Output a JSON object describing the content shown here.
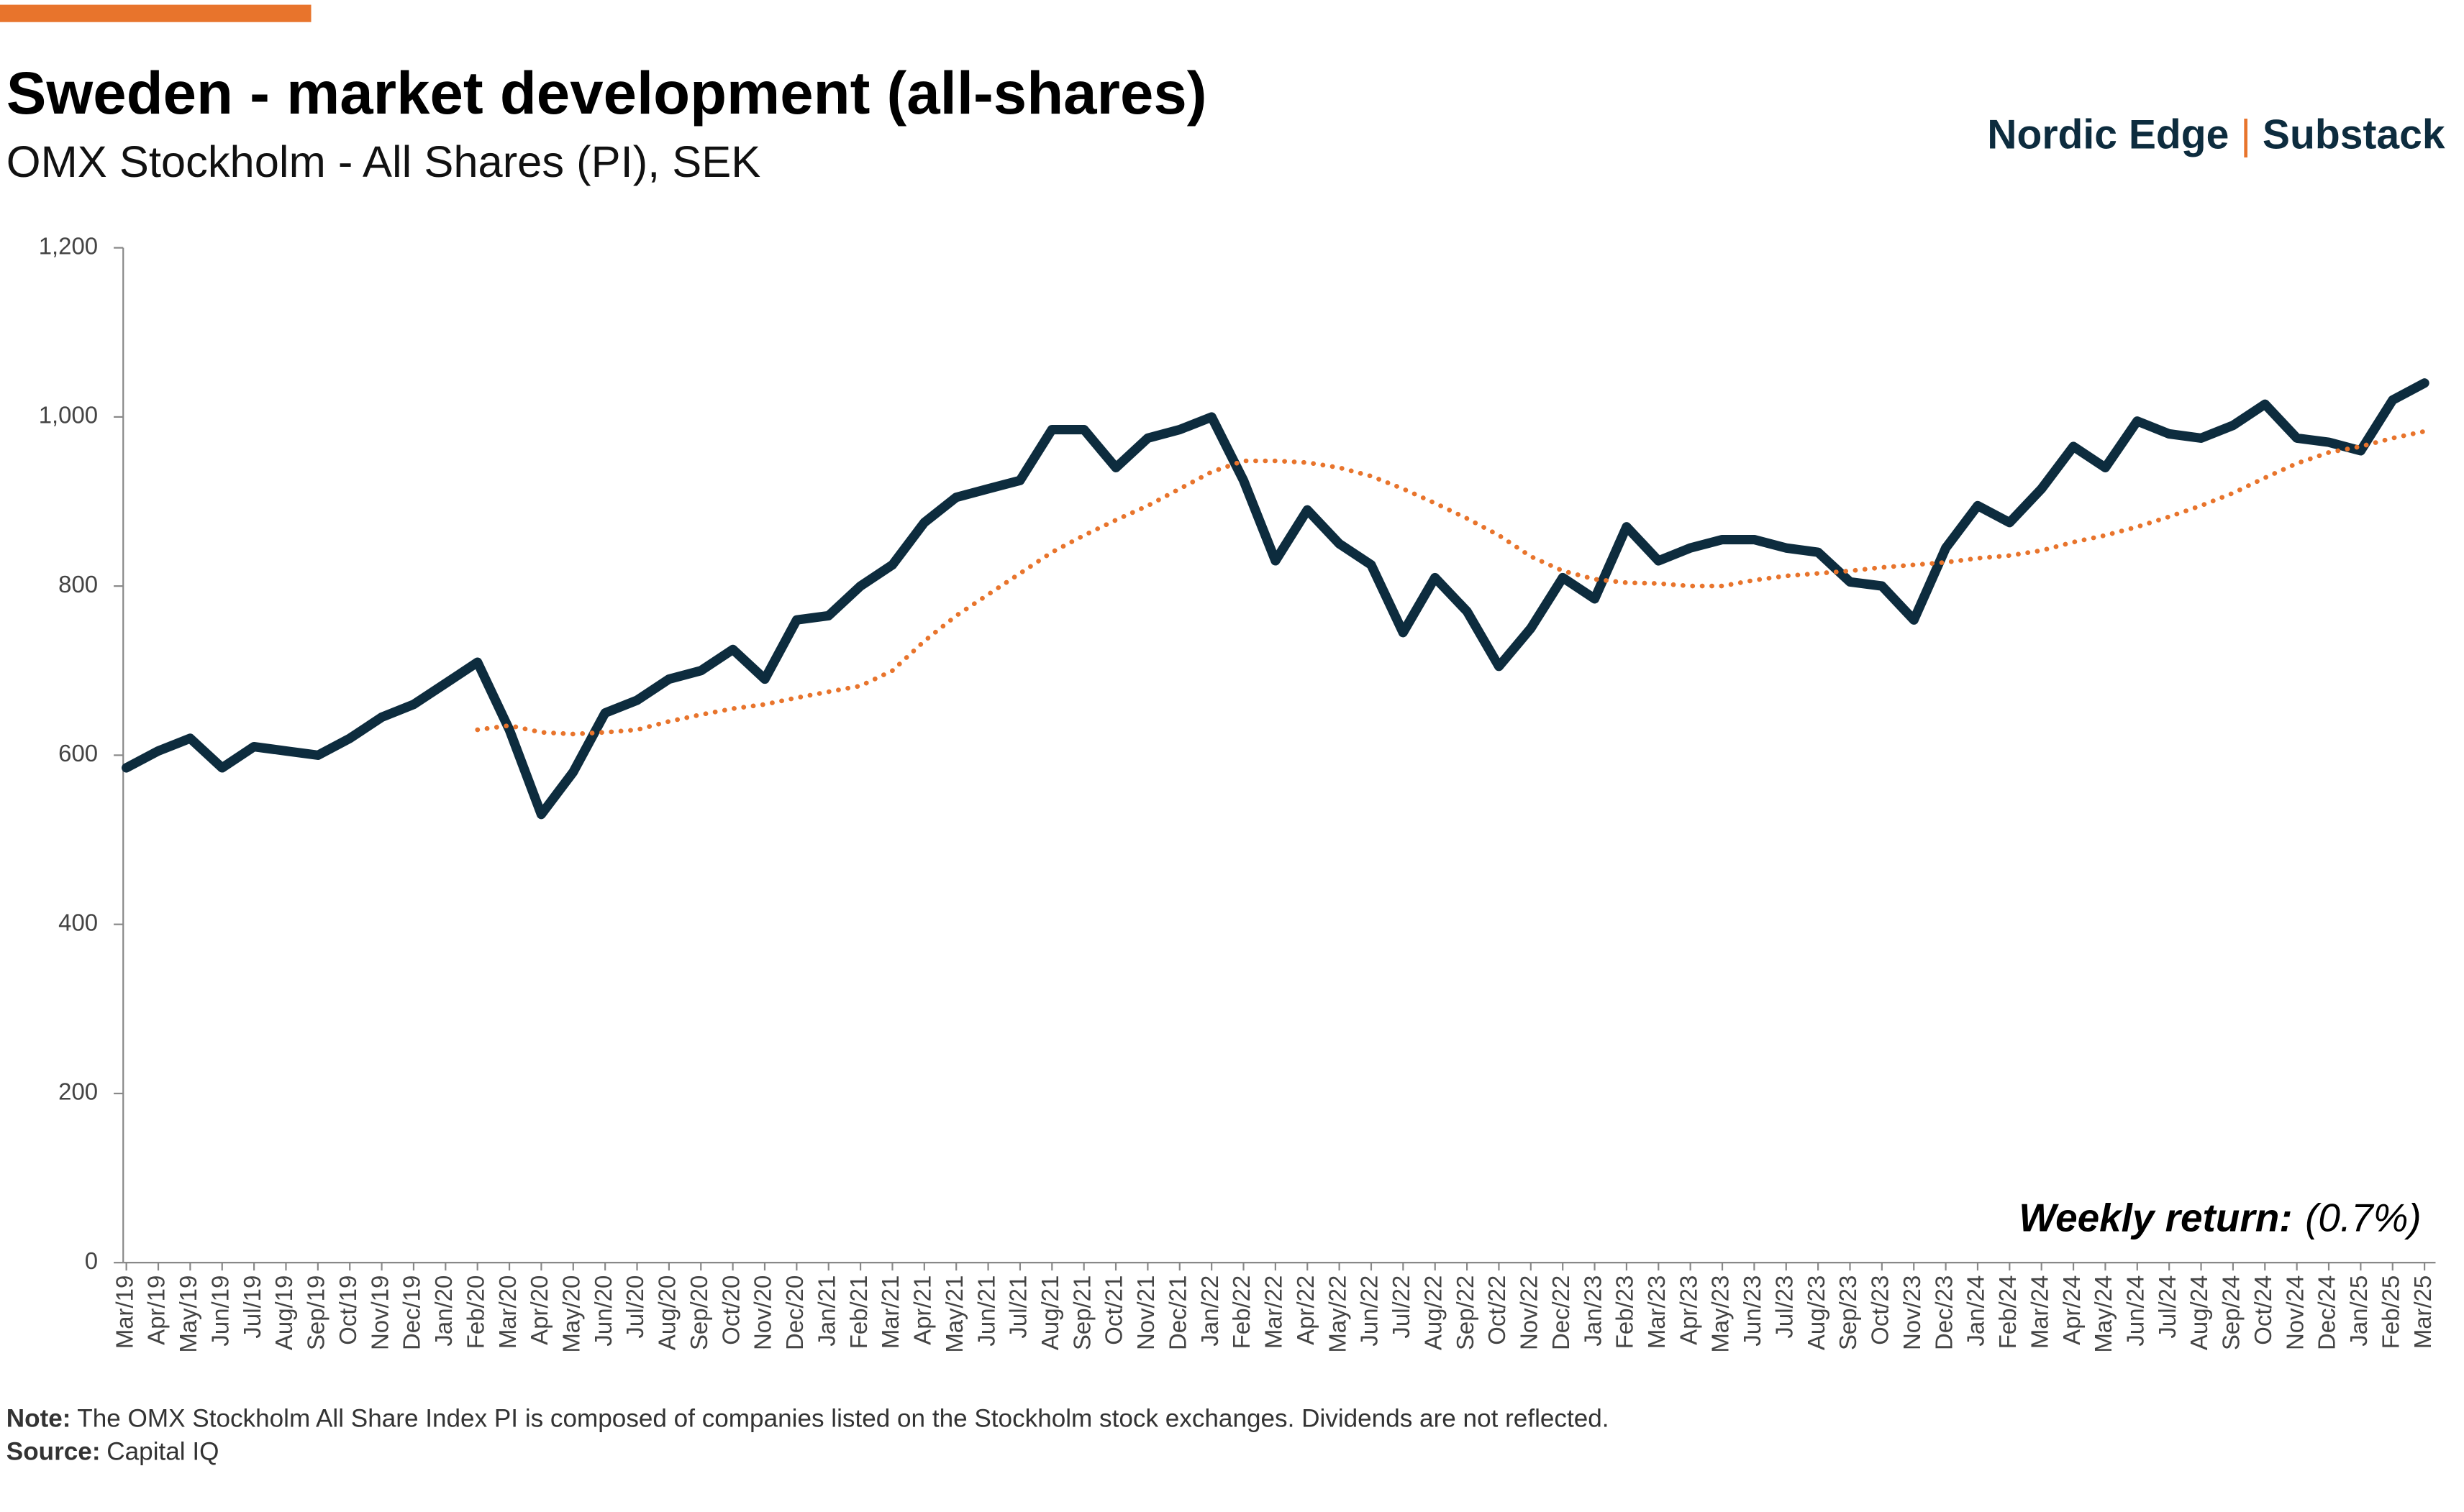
{
  "chart_data": {
    "type": "line",
    "title": "Sweden - market development (all-shares)",
    "subtitle": "OMX Stockholm - All Shares (PI), SEK",
    "brand": [
      "Nordic Edge",
      "Substack"
    ],
    "annotation": {
      "label": "Weekly return:",
      "value": "(0.7%)"
    },
    "note": {
      "label": "Note:",
      "text": "The OMX Stockholm All Share Index PI is composed of companies listed on the Stockholm stock exchanges. Dividends are not reflected."
    },
    "source": {
      "label": "Source:",
      "text": "Capital IQ"
    },
    "categories": [
      "Mar/19",
      "Apr/19",
      "May/19",
      "Jun/19",
      "Jul/19",
      "Aug/19",
      "Sep/19",
      "Oct/19",
      "Nov/19",
      "Dec/19",
      "Jan/20",
      "Feb/20",
      "Mar/20",
      "Apr/20",
      "May/20",
      "Jun/20",
      "Jul/20",
      "Aug/20",
      "Sep/20",
      "Oct/20",
      "Nov/20",
      "Dec/20",
      "Jan/21",
      "Feb/21",
      "Mar/21",
      "Apr/21",
      "May/21",
      "Jun/21",
      "Jul/21",
      "Aug/21",
      "Sep/21",
      "Oct/21",
      "Nov/21",
      "Dec/21",
      "Jan/22",
      "Feb/22",
      "Mar/22",
      "Apr/22",
      "May/22",
      "Jun/22",
      "Jul/22",
      "Aug/22",
      "Sep/22",
      "Oct/22",
      "Nov/22",
      "Dec/22",
      "Jan/23",
      "Feb/23",
      "Mar/23",
      "Apr/23",
      "May/23",
      "Jun/23",
      "Jul/23",
      "Aug/23",
      "Sep/23",
      "Oct/23",
      "Nov/23",
      "Dec/23",
      "Jan/24",
      "Feb/24",
      "Mar/24",
      "Apr/24",
      "May/24",
      "Jun/24",
      "Jul/24",
      "Aug/24",
      "Sep/24",
      "Oct/24",
      "Nov/24",
      "Dec/24",
      "Jan/25",
      "Feb/25",
      "Mar/25"
    ],
    "series": [
      {
        "color": "#0d2c3e",
        "values": [
          585,
          605,
          620,
          585,
          610,
          605,
          600,
          620,
          645,
          660,
          685,
          710,
          630,
          530,
          580,
          650,
          665,
          690,
          700,
          725,
          690,
          760,
          765,
          800,
          825,
          875,
          905,
          915,
          925,
          985,
          985,
          940,
          975,
          985,
          1000,
          925,
          830,
          890,
          850,
          825,
          745,
          810,
          770,
          705,
          750,
          810,
          785,
          870,
          830,
          845,
          855,
          855,
          845,
          840,
          805,
          800,
          760,
          845,
          895,
          875,
          915,
          965,
          940,
          995,
          980,
          975,
          990,
          1015,
          975,
          970,
          960,
          1020,
          1040
        ]
      },
      {
        "color": "#e8742c",
        "style": "dotted",
        "values": [
          null,
          null,
          null,
          null,
          null,
          null,
          null,
          null,
          null,
          null,
          null,
          630,
          635,
          627,
          625,
          627,
          630,
          640,
          648,
          655,
          660,
          668,
          675,
          682,
          700,
          735,
          765,
          790,
          815,
          840,
          860,
          878,
          895,
          915,
          935,
          948,
          948,
          946,
          940,
          930,
          915,
          898,
          880,
          860,
          835,
          818,
          808,
          804,
          803,
          800,
          800,
          807,
          812,
          815,
          818,
          822,
          825,
          828,
          833,
          836,
          842,
          852,
          860,
          870,
          882,
          895,
          910,
          928,
          945,
          958,
          965,
          975,
          983
        ]
      }
    ],
    "ylim": [
      0,
      1200
    ],
    "yticks": [
      0,
      200,
      400,
      600,
      800,
      {
        "value": 1000,
        "label": "1,000"
      },
      {
        "value": 1200,
        "label": "1,200"
      }
    ],
    "grid": false
  }
}
